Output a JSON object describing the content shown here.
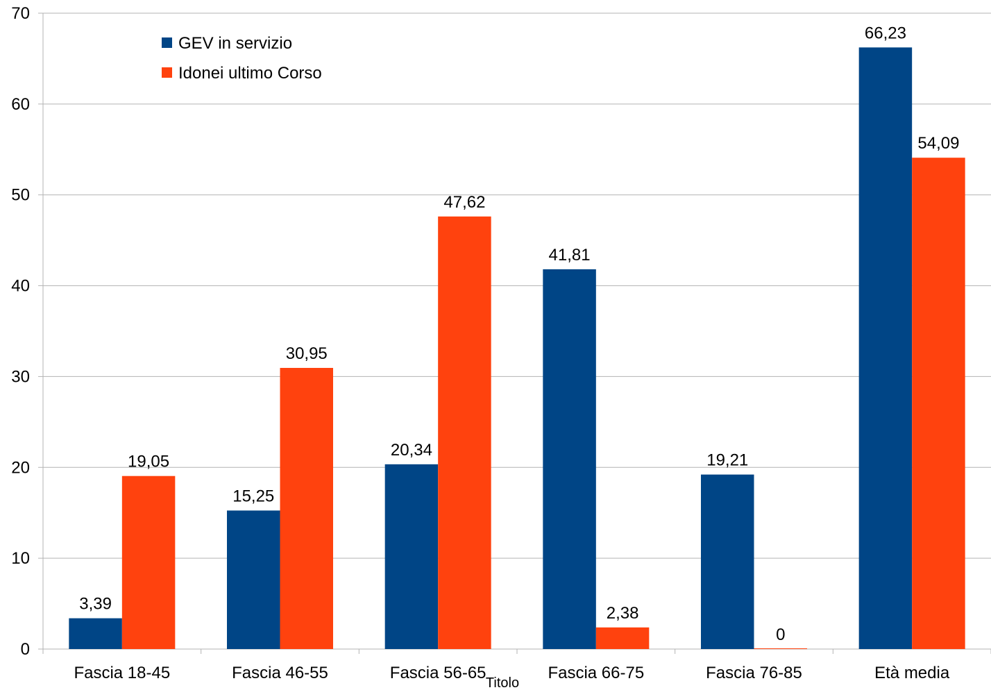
{
  "chart_data": {
    "type": "bar",
    "title": "",
    "xlabel": "Titolo",
    "ylabel": "",
    "ylim": [
      0,
      70
    ],
    "y_ticks": [
      0,
      10,
      20,
      30,
      40,
      50,
      60,
      70
    ],
    "grid": true,
    "legend_position": "top-left",
    "categories": [
      "Fascia 18-45",
      "Fascia 46-55",
      "Fascia 56-65",
      "Fascia 66-75",
      "Fascia 76-85",
      "Età media"
    ],
    "series": [
      {
        "name": "GEV in servizio",
        "color": "#004586",
        "values": [
          3.39,
          15.25,
          20.34,
          41.81,
          19.21,
          66.23
        ],
        "labels": [
          "3,39",
          "15,25",
          "20,34",
          "41,81",
          "19,21",
          "66,23"
        ]
      },
      {
        "name": "Idonei ultimo Corso",
        "color": "#ff420e",
        "values": [
          19.05,
          30.95,
          47.62,
          2.38,
          0,
          54.09
        ],
        "labels": [
          "19,05",
          "30,95",
          "47,62",
          "2,38",
          "0",
          "54,09"
        ]
      }
    ]
  }
}
